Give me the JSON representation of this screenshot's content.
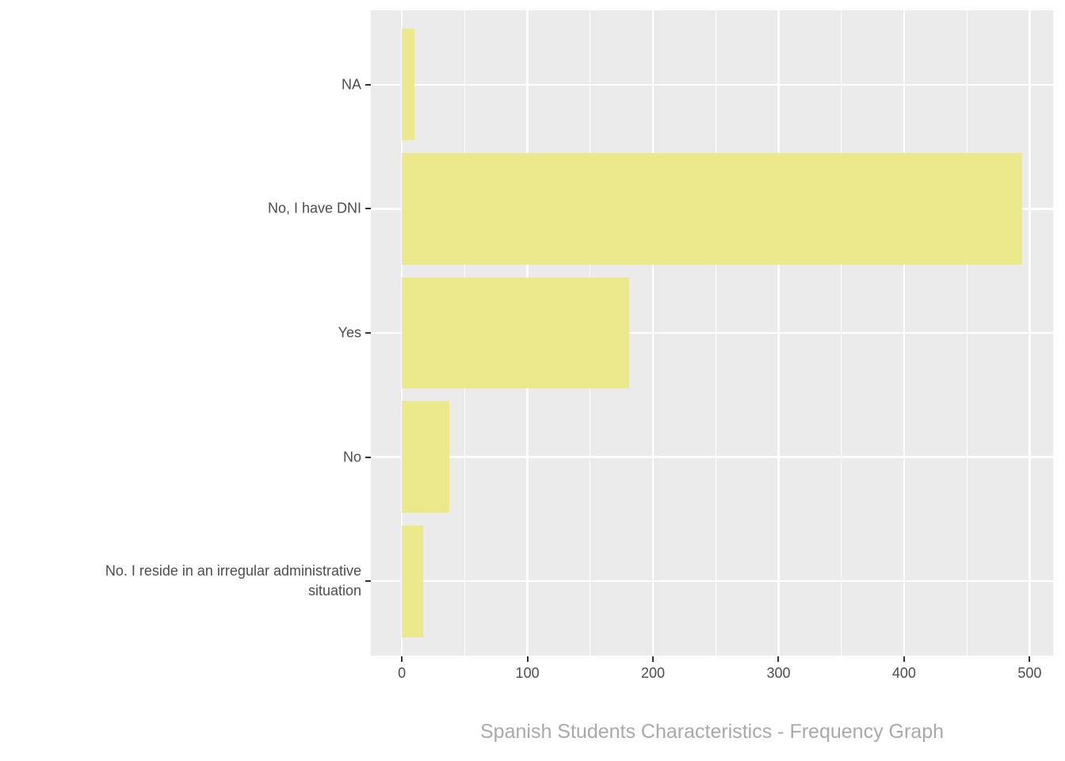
{
  "chart_data": {
    "type": "bar",
    "orientation": "horizontal",
    "title": "Spanish Students Characteristics - Frequency Graph",
    "title_position": "bottom-center",
    "categories": [
      "NA",
      "No, I have DNI",
      "Yes",
      "No",
      "No. I reside in an irregular administrative\nsituation"
    ],
    "values": [
      10,
      494,
      181,
      38,
      17
    ],
    "x_ticks": [
      0,
      100,
      200,
      300,
      400,
      500
    ],
    "x_minor_ticks": [
      50,
      150,
      250,
      350,
      450
    ],
    "xlim": [
      -24.7,
      518.7
    ],
    "xlabel": "",
    "ylabel": "",
    "grid": "major-and-minor-white-on-gray",
    "legend": false,
    "bar_relative_thickness": 0.9,
    "colors": {
      "bar_fill": "#ECE88C",
      "panel_background": "#EBEBEB",
      "gridline": "#FFFFFF",
      "axis_text": "#4D4D4D",
      "tick_mark": "#333333",
      "title_text": "#A9A9A9",
      "page_background": "#FFFFFF"
    }
  }
}
